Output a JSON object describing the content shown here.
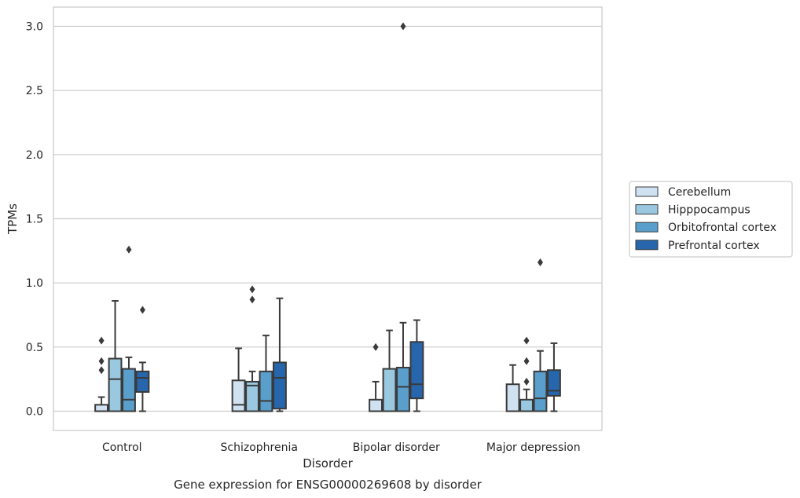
{
  "chart_data": {
    "type": "box",
    "caption": "Gene expression for ENSG00000269608 by disorder",
    "xlabel": "Disorder",
    "ylabel": "TPMs",
    "ylim": [
      -0.15,
      3.15
    ],
    "yticks": [
      "0.0",
      "0.5",
      "1.0",
      "1.5",
      "2.0",
      "2.5",
      "3.0"
    ],
    "grid": "horizontal",
    "legend_position": "right",
    "categories": [
      "Control",
      "Schizophrenia",
      "Bipolar disorder",
      "Major depression"
    ],
    "series": [
      {
        "name": "Cerebellum",
        "color": "#d0e1f2",
        "boxes": [
          {
            "min": 0.0,
            "q1": 0.0,
            "median": 0.0,
            "q3": 0.05,
            "max": 0.11,
            "outliers": [
              0.32,
              0.39,
              0.55
            ]
          },
          {
            "min": 0.0,
            "q1": 0.0,
            "median": 0.05,
            "q3": 0.24,
            "max": 0.49,
            "outliers": []
          },
          {
            "min": 0.0,
            "q1": 0.0,
            "median": 0.0,
            "q3": 0.09,
            "max": 0.23,
            "outliers": [
              0.5
            ]
          },
          {
            "min": 0.0,
            "q1": 0.0,
            "median": 0.0,
            "q3": 0.21,
            "max": 0.36,
            "outliers": []
          }
        ]
      },
      {
        "name": "Hipppocampus",
        "color": "#9ac8e0",
        "boxes": [
          {
            "min": 0.0,
            "q1": 0.0,
            "median": 0.25,
            "q3": 0.41,
            "max": 0.86,
            "outliers": []
          },
          {
            "min": 0.0,
            "q1": 0.0,
            "median": 0.2,
            "q3": 0.23,
            "max": 0.31,
            "outliers": [
              0.87,
              0.95
            ]
          },
          {
            "min": 0.0,
            "q1": 0.0,
            "median": 0.0,
            "q3": 0.33,
            "max": 0.63,
            "outliers": []
          },
          {
            "min": 0.0,
            "q1": 0.0,
            "median": 0.0,
            "q3": 0.09,
            "max": 0.17,
            "outliers": [
              0.23,
              0.39,
              0.55
            ]
          }
        ]
      },
      {
        "name": "Orbitofrontal cortex",
        "color": "#5a9fcb",
        "boxes": [
          {
            "min": 0.0,
            "q1": 0.0,
            "median": 0.09,
            "q3": 0.33,
            "max": 0.42,
            "outliers": [
              1.26
            ]
          },
          {
            "min": 0.0,
            "q1": 0.0,
            "median": 0.08,
            "q3": 0.31,
            "max": 0.59,
            "outliers": []
          },
          {
            "min": 0.0,
            "q1": 0.0,
            "median": 0.19,
            "q3": 0.34,
            "max": 0.69,
            "outliers": [
              3.0
            ]
          },
          {
            "min": 0.0,
            "q1": 0.0,
            "median": 0.1,
            "q3": 0.31,
            "max": 0.47,
            "outliers": [
              1.16
            ]
          }
        ]
      },
      {
        "name": "Prefrontal cortex",
        "color": "#2766ac",
        "boxes": [
          {
            "min": 0.0,
            "q1": 0.15,
            "median": 0.26,
            "q3": 0.31,
            "max": 0.38,
            "outliers": [
              0.79
            ]
          },
          {
            "min": 0.0,
            "q1": 0.02,
            "median": 0.26,
            "q3": 0.38,
            "max": 0.88,
            "outliers": []
          },
          {
            "min": 0.0,
            "q1": 0.1,
            "median": 0.21,
            "q3": 0.54,
            "max": 0.71,
            "outliers": []
          },
          {
            "min": 0.0,
            "q1": 0.12,
            "median": 0.16,
            "q3": 0.32,
            "max": 0.53,
            "outliers": []
          }
        ]
      }
    ]
  }
}
